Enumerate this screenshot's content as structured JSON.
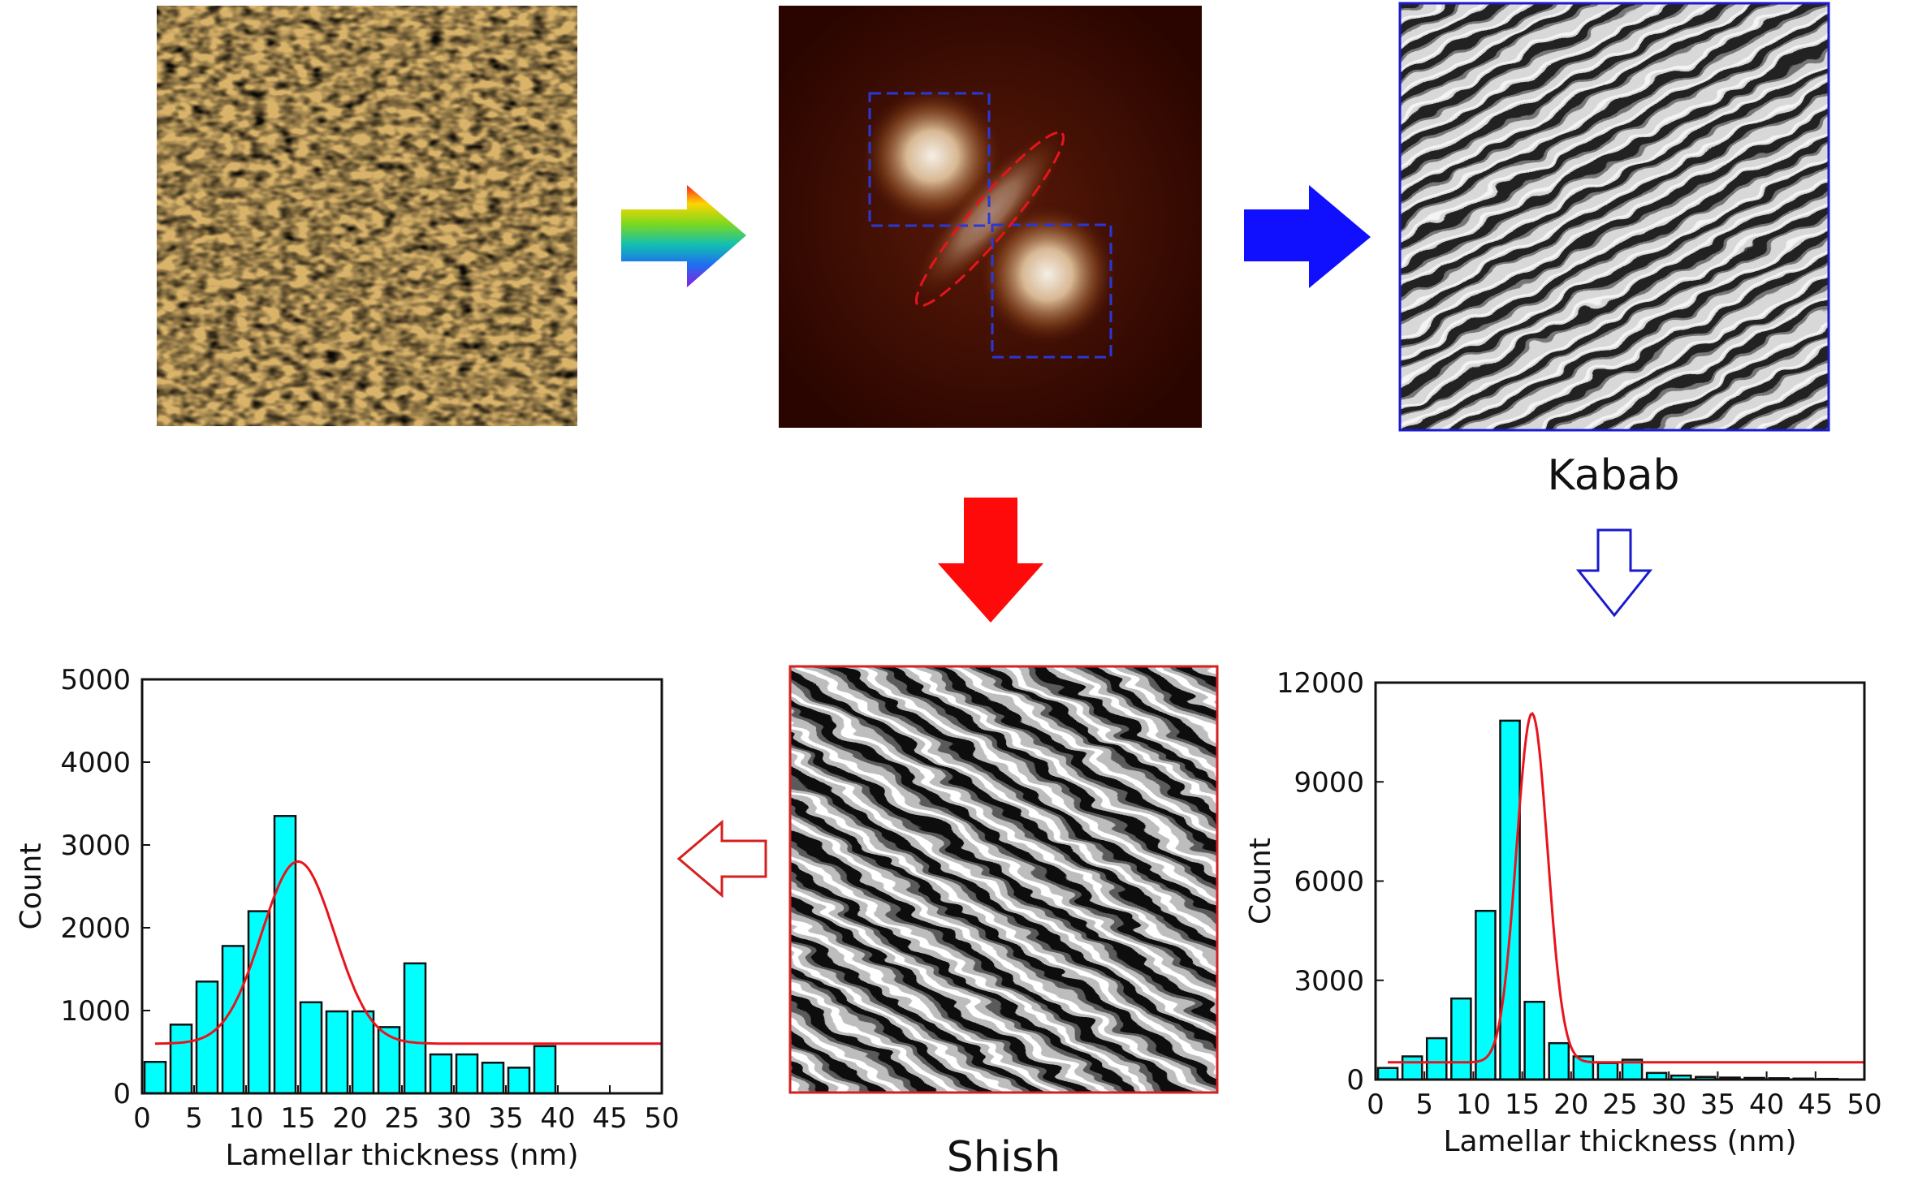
{
  "labels": {
    "kabab": "Kabab",
    "shish": "Shish"
  },
  "colors": {
    "bar_fill": "#00ffff",
    "fit_line": "#e8141c",
    "kabab_frame": "#1a1acc",
    "shish_frame": "#d42020",
    "blue_arrow": "#1010ff",
    "red_arrow": "#ff0a0a"
  },
  "icons": {
    "rainbow_arrow": "rainbow-right-arrow-icon",
    "blue_arrow": "blue-right-arrow-icon",
    "red_arrow": "red-down-arrow-icon",
    "hollow_blue_arrow": "hollow-blue-down-arrow-icon",
    "hollow_red_arrow": "hollow-red-left-arrow-icon"
  },
  "chart_data": [
    {
      "type": "bar",
      "id": "shish-histogram",
      "xlabel": "Lamellar thickness (nm)",
      "ylabel": "Count",
      "xlim": [
        0,
        50
      ],
      "ylim": [
        0,
        5000
      ],
      "xticks": [
        "0",
        "5",
        "10",
        "15",
        "20",
        "25",
        "30",
        "35",
        "40",
        "45",
        "50"
      ],
      "yticks": [
        "0",
        "1000",
        "2000",
        "3000",
        "4000",
        "5000"
      ],
      "bin_width": 2.5,
      "x": [
        1.25,
        3.75,
        6.25,
        8.75,
        11.25,
        13.75,
        16.25,
        18.75,
        21.25,
        23.75,
        26.25,
        28.75,
        31.25,
        33.75,
        36.25,
        38.75,
        41.25,
        43.75,
        46.25
      ],
      "values": [
        380,
        830,
        1350,
        1780,
        2200,
        3350,
        1100,
        990,
        990,
        800,
        1570,
        470,
        470,
        370,
        310,
        570,
        null,
        null,
        null
      ],
      "fit": {
        "type": "gaussian",
        "baseline": 600,
        "amplitude": 2200,
        "center": 15,
        "sigma": 3.5,
        "x_start": 1.25,
        "x_end": 50
      }
    },
    {
      "type": "bar",
      "id": "kabab-histogram",
      "xlabel": "Lamellar thickness (nm)",
      "ylabel": "Count",
      "xlim": [
        0,
        50
      ],
      "ylim": [
        0,
        12000
      ],
      "xticks": [
        "0",
        "5",
        "10",
        "15",
        "20",
        "25",
        "30",
        "35",
        "40",
        "45",
        "50"
      ],
      "yticks": [
        "0",
        "3000",
        "6000",
        "9000",
        "12000"
      ],
      "bin_width": 2.5,
      "x": [
        1.25,
        3.75,
        6.25,
        8.75,
        11.25,
        13.75,
        16.25,
        18.75,
        21.25,
        23.75,
        26.25,
        28.75,
        31.25,
        33.75,
        36.25,
        38.75,
        41.25,
        43.75,
        46.25
      ],
      "values": [
        350,
        700,
        1250,
        2450,
        5100,
        10850,
        2350,
        1100,
        700,
        500,
        600,
        200,
        120,
        80,
        60,
        50,
        40,
        30,
        20
      ],
      "fit": {
        "type": "gaussian",
        "baseline": 520,
        "amplitude": 10550,
        "center": 16,
        "sigma": 1.6,
        "x_start": 1.25,
        "x_end": 50
      }
    }
  ]
}
